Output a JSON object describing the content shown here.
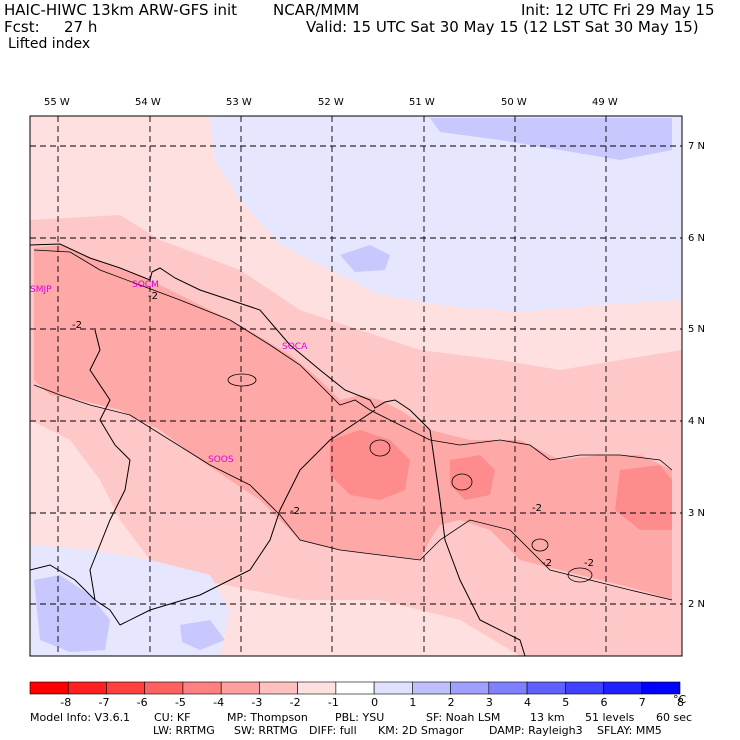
{
  "header": {
    "model_line": "HAIC-HIWC 13km ARW-GFS init",
    "org": "NCAR/MMM",
    "init": "Init: 12 UTC Fri 29 May 15",
    "fcst_label": "Fcst:",
    "fcst_value": "27 h",
    "valid": "Valid: 15 UTC Sat 30 May 15 (12 LST Sat 30 May 15)",
    "field": "Lifted index"
  },
  "map": {
    "lon_labels": [
      "55 W",
      "54 W",
      "53 W",
      "52 W",
      "51 W",
      "50 W",
      "49 W"
    ],
    "lat_labels": [
      "7 N",
      "6 N",
      "5 N",
      "4 N",
      "3 N",
      "2 N"
    ],
    "stations": [
      "SMJP",
      "SOCM",
      "SOCA",
      "SOOS"
    ],
    "contour_labels": [
      "-2",
      "-2",
      "-2",
      "-2",
      "-2",
      "-2"
    ]
  },
  "colorbar": {
    "ticks": [
      "-8",
      "-7",
      "-6",
      "-5",
      "-4",
      "-3",
      "-2",
      "-1",
      "0",
      "1",
      "2",
      "3",
      "4",
      "5",
      "6",
      "7",
      "8"
    ],
    "unit": "°C",
    "colors": [
      "#ff0000",
      "#ff2020",
      "#ff4040",
      "#ff6060",
      "#ff8080",
      "#ffa0a0",
      "#ffc0c0",
      "#ffe0e0",
      "#ffffff",
      "#e0e0ff",
      "#c0c0ff",
      "#a0a0ff",
      "#8080ff",
      "#6060ff",
      "#4040ff",
      "#2020ff",
      "#0000ff"
    ]
  },
  "footer": {
    "line1": [
      "Model Info: V3.6.1",
      "CU: KF",
      "MP: Thompson",
      "PBL: YSU",
      "SF: Noah LSM",
      "13 km",
      "51 levels",
      "60 sec"
    ],
    "line2": [
      "LW: RRTMG",
      "SW: RRTMG",
      "DIFF: full",
      "KM: 2D Smagor",
      "DAMP: Rayleigh3",
      "SFLAY: MM5"
    ]
  }
}
